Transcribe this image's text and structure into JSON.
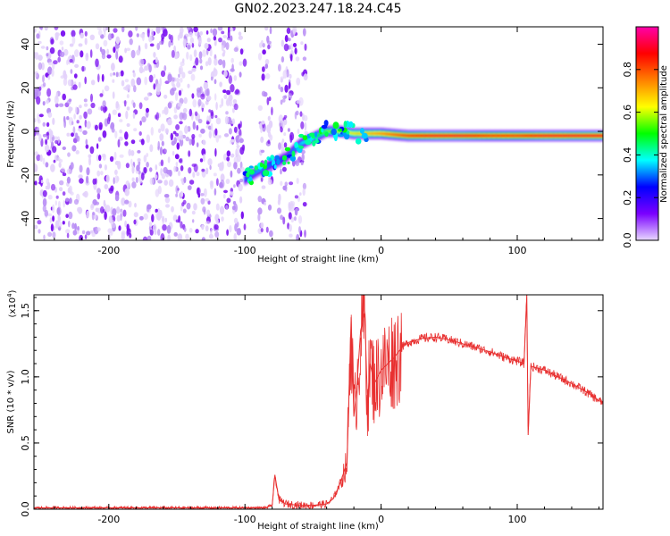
{
  "title": "GN02.2023.247.18.24.C45",
  "colormap": [
    "#e8d8ff",
    "#7a00ff",
    "#0000ff",
    "#00ffff",
    "#00ff00",
    "#ffff00",
    "#ff8000",
    "#ff0000",
    "#ff00aa"
  ],
  "chart_data": [
    {
      "type": "heatmap",
      "xlabel": "Height of straight line (km)",
      "ylabel": "Frequency (Hz)",
      "xlim": [
        -255,
        163
      ],
      "ylim": [
        -50,
        48
      ],
      "xticks": [
        -200,
        -100,
        0,
        100
      ],
      "xtick_labels": [
        "-200",
        "-100",
        "0",
        "100"
      ],
      "yticks": [
        -40,
        -20,
        0,
        20,
        40
      ],
      "ytick_labels": [
        "-40",
        "-20",
        "0",
        "20",
        "40"
      ],
      "colorbar": {
        "label": "Normalized spectral amplitude",
        "range": [
          0,
          1
        ],
        "ticks": [
          0,
          0.2,
          0.4,
          0.6,
          0.8
        ],
        "tick_labels": [
          "0.0",
          "0.2",
          "0.4",
          "0.6",
          "0.8"
        ]
      },
      "noise_regions_km": [
        [
          -255,
          -100
        ],
        [
          -90,
          -80
        ],
        [
          -75,
          -55
        ]
      ],
      "ridge": {
        "x": [
          -100,
          -90,
          -80,
          -70,
          -60,
          -50,
          -40,
          -30,
          -20,
          -10,
          0,
          20,
          40,
          60,
          80,
          100,
          120,
          140,
          163
        ],
        "y": [
          -22,
          -18,
          -15,
          -12,
          -6,
          -3,
          0,
          0,
          -1,
          -1,
          -1,
          -2,
          -2,
          -2,
          -2,
          -2,
          -2,
          -2,
          -2
        ],
        "amplitude": [
          0.3,
          0.35,
          0.3,
          0.3,
          0.35,
          0.45,
          0.55,
          0.6,
          0.65,
          0.7,
          0.75,
          0.85,
          0.9,
          0.9,
          0.85,
          0.85,
          0.9,
          0.9,
          0.9
        ]
      }
    },
    {
      "type": "line",
      "xlabel": "Height of straight line (km)",
      "ylabel": "SNR (10 * v/v)",
      "multiplier_label": "(x10",
      "multiplier_exp": "4",
      "xlim": [
        -255,
        163
      ],
      "ylim": [
        0,
        1.62
      ],
      "xticks": [
        -200,
        -100,
        0,
        100
      ],
      "xtick_labels": [
        "-200",
        "-100",
        "0",
        "100"
      ],
      "yticks": [
        0,
        0.5,
        1.0,
        1.5
      ],
      "ytick_labels": [
        "0.0",
        "0.5",
        "1.0",
        "1.5"
      ],
      "color": "#e83030",
      "series": [
        {
          "x": [
            -255,
            -200,
            -150,
            -100,
            -85,
            -80,
            -78,
            -75,
            -70,
            -60,
            -50,
            -40,
            -35,
            -30,
            -25,
            -22,
            -20,
            -18,
            -15,
            -12,
            -10,
            -8,
            -5,
            0,
            5,
            10,
            15,
            20,
            30,
            40,
            50,
            60,
            70,
            80,
            90,
            100,
            105,
            107,
            108,
            110,
            120,
            130,
            140,
            150,
            163
          ],
          "y": [
            0.01,
            0.01,
            0.01,
            0.01,
            0.01,
            0.03,
            0.26,
            0.07,
            0.04,
            0.03,
            0.03,
            0.04,
            0.08,
            0.2,
            0.35,
            1.45,
            0.7,
            0.9,
            1.35,
            1.48,
            0.8,
            1.1,
            0.95,
            1.05,
            1.1,
            1.15,
            1.22,
            1.26,
            1.29,
            1.3,
            1.28,
            1.25,
            1.22,
            1.19,
            1.15,
            1.12,
            1.1,
            1.62,
            0.56,
            1.08,
            1.05,
            1.0,
            0.95,
            0.89,
            0.8
          ]
        }
      ]
    }
  ]
}
